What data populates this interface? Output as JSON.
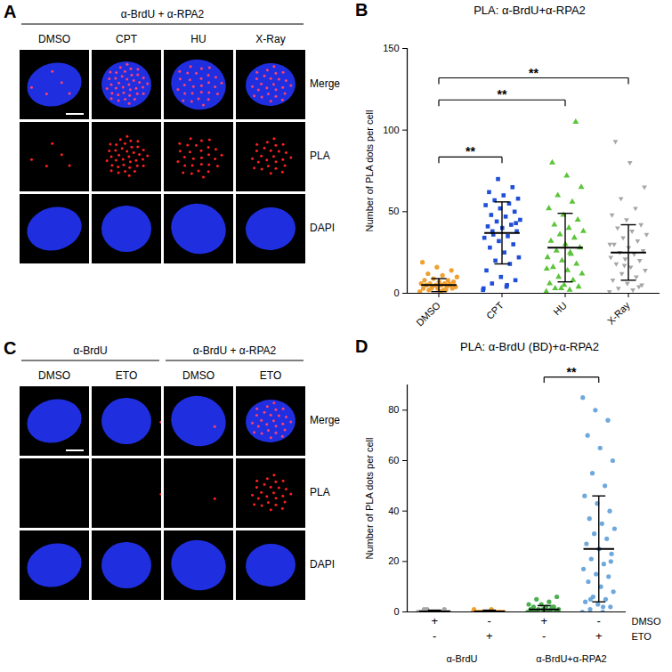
{
  "image_panels": [
    {
      "panel": "A",
      "headers": [
        {
          "text": "α-BrdU + α-RPA2",
          "span": 4
        }
      ],
      "columns": [
        "DMSO",
        "CPT",
        "HU",
        "X-Ray"
      ],
      "rows": [
        "Merge",
        "PLA",
        "DAPI"
      ]
    },
    {
      "panel": "C",
      "headers": [
        {
          "text": "α-BrdU",
          "span": 2
        },
        {
          "text": "α-BrdU + α-RPA2",
          "span": 2
        }
      ],
      "columns": [
        "DMSO",
        "ETO",
        "DMSO",
        "ETO"
      ],
      "rows": [
        "Merge",
        "PLA",
        "DAPI"
      ]
    }
  ],
  "chart_data": [
    {
      "panel": "B",
      "type": "scatter",
      "title": "PLA: α-BrdU+α-RPA2",
      "y_label": "Number of PLA dots per cell",
      "categories": [
        "DMSO",
        "CPT",
        "HU",
        "X-Ray"
      ],
      "colors": [
        "#f0a030",
        "#1f4fd8",
        "#5cc43a",
        "#a6a6a6"
      ],
      "markers": [
        "circle",
        "square",
        "triangle",
        "triangle-down"
      ],
      "points": [
        [
          1,
          2,
          2,
          3,
          3,
          3,
          4,
          4,
          4,
          5,
          5,
          5,
          5,
          6,
          6,
          6,
          7,
          7,
          8,
          8,
          9,
          10,
          11,
          12,
          14,
          16,
          19,
          2,
          3,
          4,
          1,
          5,
          6
        ],
        [
          2,
          4,
          6,
          8,
          10,
          14,
          18,
          20,
          22,
          25,
          28,
          30,
          32,
          34,
          35,
          36,
          38,
          40,
          41,
          42,
          44,
          45,
          47,
          48,
          50,
          52,
          54,
          55,
          57,
          58,
          60,
          62,
          65,
          70,
          3,
          5,
          38,
          43
        ],
        [
          1,
          2,
          3,
          4,
          5,
          6,
          8,
          10,
          12,
          14,
          16,
          18,
          20,
          22,
          24,
          26,
          28,
          30,
          32,
          34,
          36,
          38,
          40,
          42,
          45,
          48,
          52,
          56,
          60,
          65,
          72,
          80,
          105,
          3,
          15,
          25
        ],
        [
          1,
          2,
          3,
          5,
          6,
          8,
          10,
          12,
          14,
          16,
          18,
          20,
          21,
          22,
          24,
          25,
          26,
          28,
          30,
          32,
          34,
          36,
          38,
          40,
          42,
          45,
          48,
          52,
          58,
          65,
          80,
          93,
          4,
          17,
          30
        ]
      ],
      "values": [
        5,
        37,
        28,
        25
      ],
      "error": [
        4,
        19,
        21,
        17
      ],
      "ylim": [
        0,
        150
      ],
      "yticks": [
        0,
        50,
        100,
        150
      ],
      "annotations": [
        {
          "from": 0,
          "to": 1,
          "text": "**"
        },
        {
          "from": 0,
          "to": 2,
          "text": "**"
        },
        {
          "from": 0,
          "to": 3,
          "text": "**"
        }
      ]
    },
    {
      "panel": "D",
      "type": "scatter",
      "title": "PLA: α-BrdU (BD)+α-RPA2",
      "y_label": "Number of PLA dots per cell",
      "categories": [
        null,
        null,
        null,
        null
      ],
      "colors": [
        "#a6a6a6",
        "#f0a030",
        "#4caf50",
        "#6fa8dc"
      ],
      "marker": "circle",
      "points": [
        [
          0,
          0,
          0,
          0,
          0,
          0,
          0,
          0,
          0,
          0,
          1,
          1,
          0,
          0,
          0,
          1
        ],
        [
          0,
          0,
          0,
          0,
          0,
          0,
          0,
          0,
          0,
          1,
          0,
          0,
          0,
          1,
          0,
          0
        ],
        [
          0,
          0,
          0,
          0,
          1,
          1,
          1,
          1,
          1,
          2,
          2,
          2,
          3,
          3,
          4,
          5,
          6,
          0,
          1,
          2
        ],
        [
          0,
          0,
          1,
          2,
          3,
          4,
          5,
          6,
          8,
          10,
          12,
          14,
          15,
          17,
          19,
          21,
          23,
          25,
          27,
          29,
          31,
          33,
          35,
          37,
          40,
          43,
          46,
          50,
          55,
          60,
          65,
          70,
          76,
          80,
          85,
          2,
          5,
          20
        ]
      ],
      "values": [
        0.2,
        0.2,
        1,
        25
      ],
      "error": [
        0.5,
        0.5,
        1.5,
        21
      ],
      "ylim": [
        0,
        90
      ],
      "yticks": [
        0,
        20,
        40,
        60,
        80
      ],
      "tick_labels": "y",
      "conditions": [
        {
          "name": "DMSO",
          "marks": [
            "+",
            "-",
            "+",
            "-"
          ]
        },
        {
          "name": "ETO",
          "marks": [
            "-",
            "+",
            "-",
            "+"
          ]
        }
      ],
      "groups": [
        {
          "label": "α-BrdU",
          "span": 2
        },
        {
          "label": "α-BrdU+α-RPA2",
          "span": 2
        }
      ],
      "annotations": [
        {
          "from": 2,
          "to": 3,
          "text": "**"
        }
      ]
    }
  ]
}
